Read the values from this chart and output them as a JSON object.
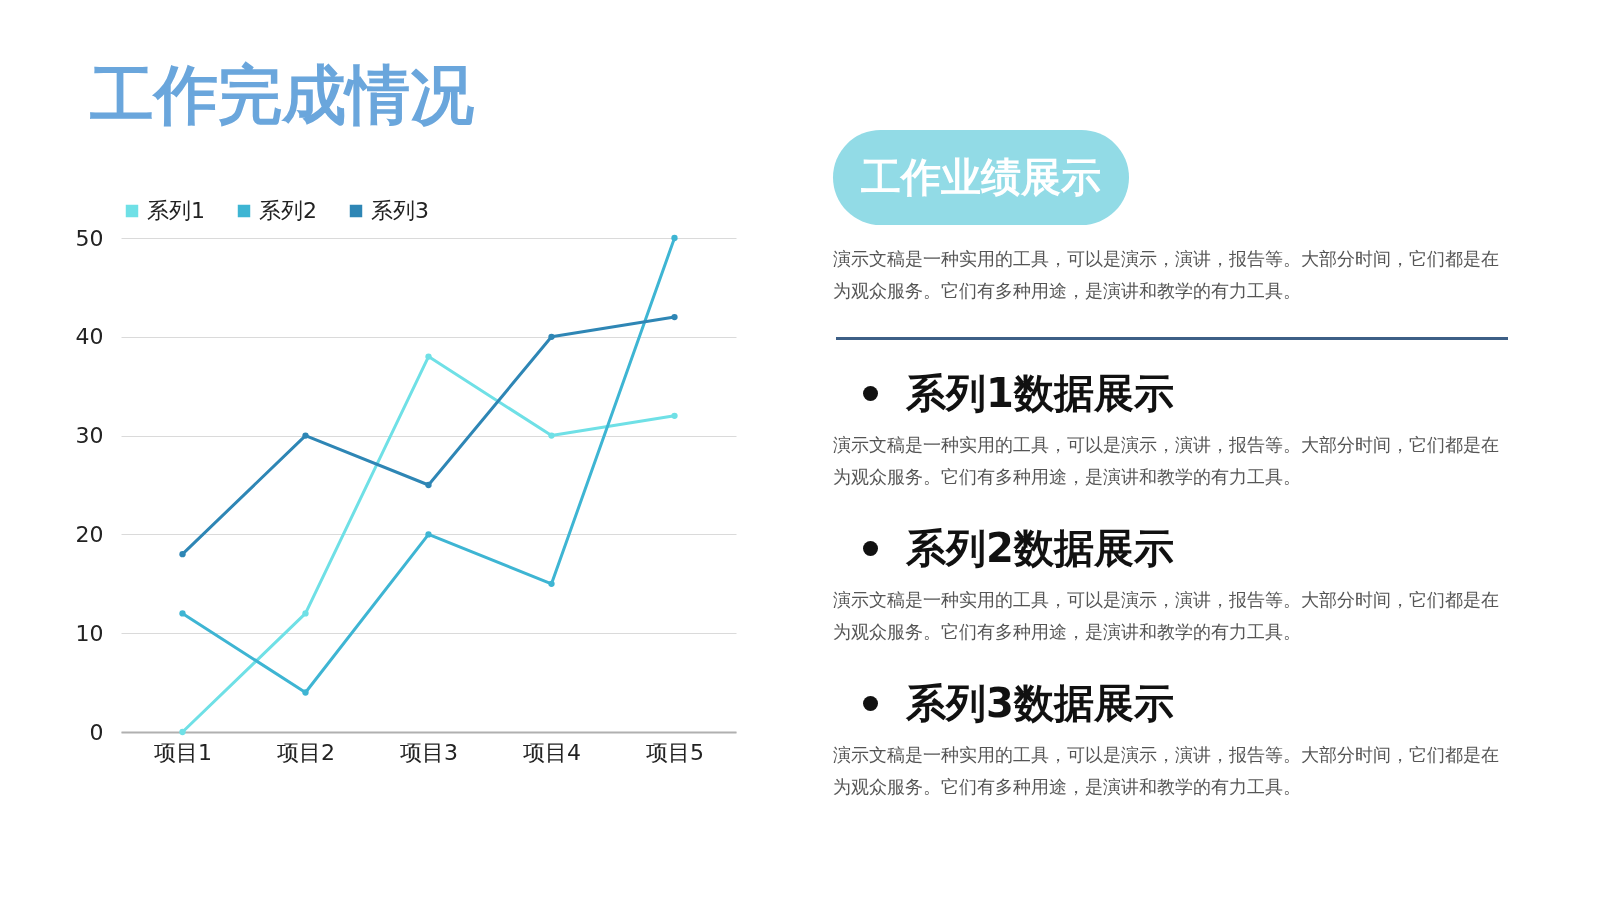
{
  "chart_data": [
    {
      "type": "line",
      "title": "工作完成情况",
      "categories": [
        "项目1",
        "项目2",
        "项目3",
        "项目4",
        "项目5"
      ],
      "series": [
        {
          "name": "系列1",
          "color": "#6fe0e6",
          "values": [
            0,
            12,
            38,
            30,
            32
          ]
        },
        {
          "name": "系列2",
          "color": "#3eb5d3",
          "values": [
            12,
            4,
            20,
            15,
            50
          ]
        },
        {
          "name": "系列3",
          "color": "#2e86b5",
          "values": [
            18,
            30,
            25,
            40,
            42
          ]
        }
      ],
      "ylim": [
        0,
        50
      ],
      "yticks": [
        0,
        10,
        20,
        30,
        40,
        50
      ],
      "grid": "y",
      "legend": "top",
      "marker": "circle",
      "line_style": "solid"
    },
    {
      "type": "other",
      "title": "工作业绩展示",
      "subtitle": "演示文稿是一种实用的工具，可以是演示，演讲，报告等。大部分时间，它们都是在为观众服务。它们有多种用途，是演讲和教学的有力工具。",
      "annotations": [
        "系列1数据展示",
        "演示文稿是一种实用的工具，可以是演示，演讲，报告等。大部分时间，它们都是在为观众服务。它们有多种用途，是演讲和教学的有力工具。",
        "系列2数据展示",
        "演示文稿是一种实用的工具，可以是演示，演讲，报告等。大部分时间，它们都是在为观众服务。它们有多种用途，是演讲和教学的有力工具。",
        "系列3数据展示",
        "演示文稿是一种实用的工具，可以是演示，演讲，报告等。大部分时间，它们都是在为观众服务。它们有多种用途，是演讲和教学的有力工具。"
      ]
    }
  ]
}
